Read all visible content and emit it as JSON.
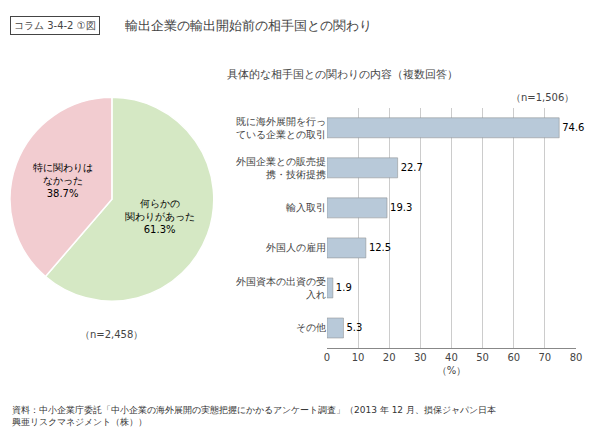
{
  "chart_data": [
    {
      "type": "pie",
      "title": "輸出企業の輸出開始前の相手国との関わり",
      "subtitle": "コラム 3-4-2 ①図",
      "categories": [
        "何らかの\n関わりがあった\n61.3%",
        "特に関わりは\nなかった\n38.7%"
      ],
      "values": [
        61.3,
        38.7
      ],
      "colors": [
        "#d5e8c4",
        "#f2ccd0"
      ],
      "annotations": [
        "（n=2,458）"
      ]
    },
    {
      "type": "bar",
      "orientation": "horizontal",
      "title": "具体的な相手国との関わりの内容（複数回答）",
      "categories": [
        "既に海外展開を行っ\nている企業との取引",
        "外国企業との販売提\n携・技術提携",
        "輸入取引",
        "外国人の雇用",
        "外国資本の出資の受\n入れ",
        "その他"
      ],
      "values": [
        74.6,
        22.7,
        19.3,
        12.5,
        1.9,
        5.3
      ],
      "color": "#b8c9d9",
      "xlim": [
        0,
        80
      ],
      "xticks": [
        0,
        10,
        20,
        30,
        40,
        50,
        60,
        70,
        80
      ],
      "xlabel": "（%）",
      "grid": true,
      "data_labels": true,
      "annotations": [
        "（n=1,506）",
        "資料：中小企業庁委託「中小企業の海外展開の実態把握にかかるアンケート調査」（2013 年 12 月、損保ジャパン日本\n興亜リスクマネジメント（株））"
      ]
    }
  ]
}
